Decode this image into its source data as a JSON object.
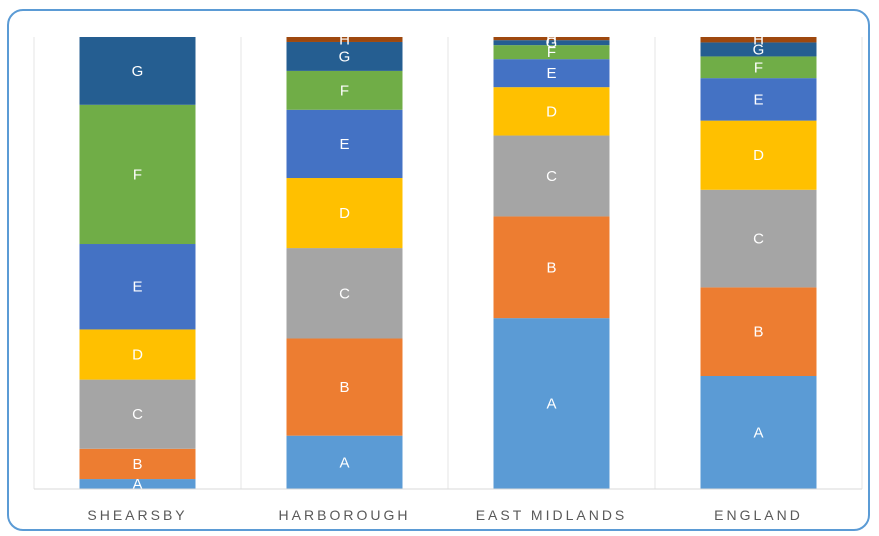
{
  "chart_data": {
    "type": "bar",
    "stacked": true,
    "normalized": true,
    "categories": [
      "SHEARSBY",
      "HARBOROUGH",
      "EAST MIDLANDS",
      "ENGLAND"
    ],
    "ylim": [
      0,
      100
    ],
    "grid": false,
    "legend": "none",
    "series": [
      {
        "name": "A",
        "color": "#5b9bd5",
        "values": [
          2.2,
          11.8,
          37.8,
          25.0
        ]
      },
      {
        "name": "B",
        "color": "#ed7d31",
        "values": [
          6.7,
          21.5,
          22.5,
          19.6
        ]
      },
      {
        "name": "C",
        "color": "#a5a5a5",
        "values": [
          15.3,
          20.0,
          17.9,
          21.6
        ]
      },
      {
        "name": "D",
        "color": "#ffc000",
        "values": [
          11.1,
          15.5,
          10.7,
          15.3
        ]
      },
      {
        "name": "E",
        "color": "#4472c4",
        "values": [
          18.9,
          15.1,
          6.2,
          9.4
        ]
      },
      {
        "name": "F",
        "color": "#70ad47",
        "values": [
          30.8,
          8.6,
          3.1,
          4.8
        ]
      },
      {
        "name": "G",
        "color": "#255e91",
        "values": [
          15.0,
          6.4,
          1.1,
          3.1
        ]
      },
      {
        "name": "H",
        "color": "#9e480e",
        "values": [
          0.0,
          1.1,
          0.7,
          1.2
        ]
      }
    ]
  }
}
